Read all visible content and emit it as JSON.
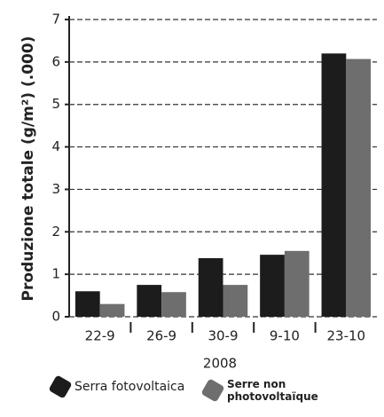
{
  "chart_data": {
    "type": "bar",
    "y_label": "Produzione totale (g/m²) (.000)",
    "x_label": "2008",
    "categories": [
      "22-9",
      "26-9",
      "30-9",
      "9-10",
      "23-10"
    ],
    "series": [
      {
        "name": "Serra fotovoltaica",
        "color": "#1c1c1c",
        "values": [
          0.6,
          0.75,
          1.38,
          1.46,
          6.2
        ]
      },
      {
        "name": "Serre non photovoltaïque",
        "color": "#6e6e6e",
        "values": [
          0.3,
          0.58,
          0.75,
          1.55,
          6.07
        ]
      }
    ],
    "ylim": [
      0,
      7
    ],
    "yticks": [
      0,
      1,
      2,
      3,
      4,
      5,
      6,
      7
    ],
    "grid": true
  }
}
